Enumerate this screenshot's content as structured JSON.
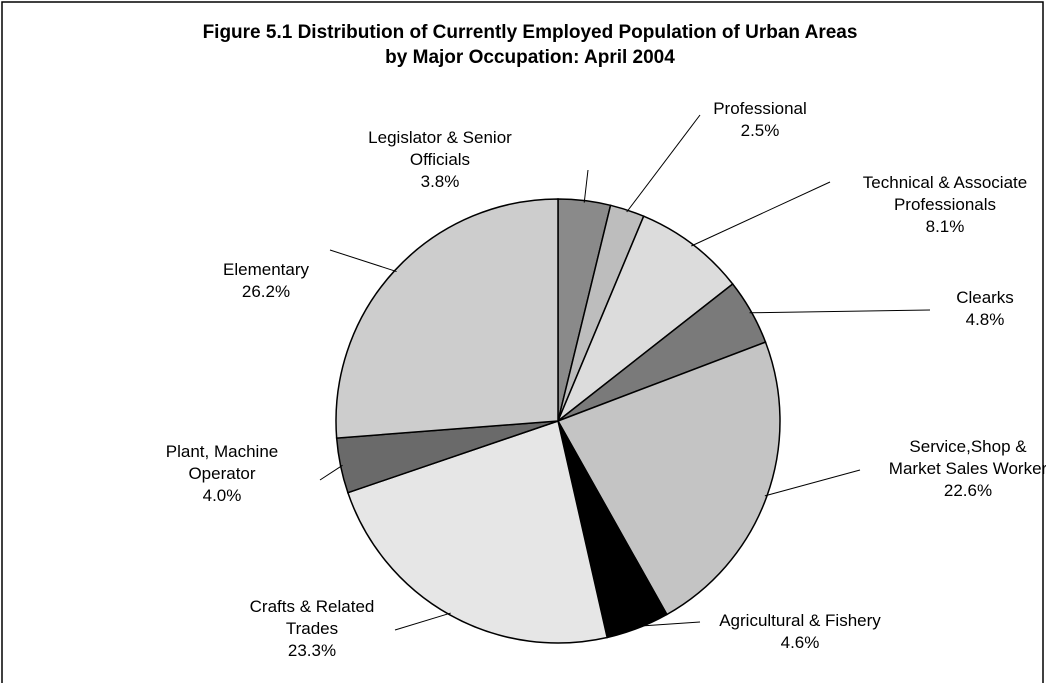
{
  "chart_data": {
    "type": "pie",
    "title": [
      "Figure 5.1 Distribution of Currently Employed Population of Urban Areas",
      "by Major Occupation: April 2004"
    ],
    "categories": [
      "Legislator & Senior Officials",
      "Professional",
      "Technical & Associate Professionals",
      "Clearks",
      "Service,Shop & Market Sales Worker",
      "Agricultural & Fishery",
      "Crafts & Related Trades",
      "Plant, Machine Operator",
      "Elementary"
    ],
    "values": [
      3.8,
      2.5,
      8.1,
      4.8,
      22.6,
      4.6,
      23.3,
      4.0,
      26.2
    ],
    "value_labels": [
      "3.8%",
      "2.5%",
      "8.1%",
      "4.8%",
      "22.6%",
      "4.6%",
      "23.3%",
      "4.0%",
      "26.2%"
    ],
    "colors": [
      "#8a8a8a",
      "#bdbdbd",
      "#dcdcdc",
      "#7a7a7a",
      "#c4c4c4",
      "#000000",
      "#e6e6e6",
      "#6a6a6a",
      "#cdcdcd"
    ]
  }
}
